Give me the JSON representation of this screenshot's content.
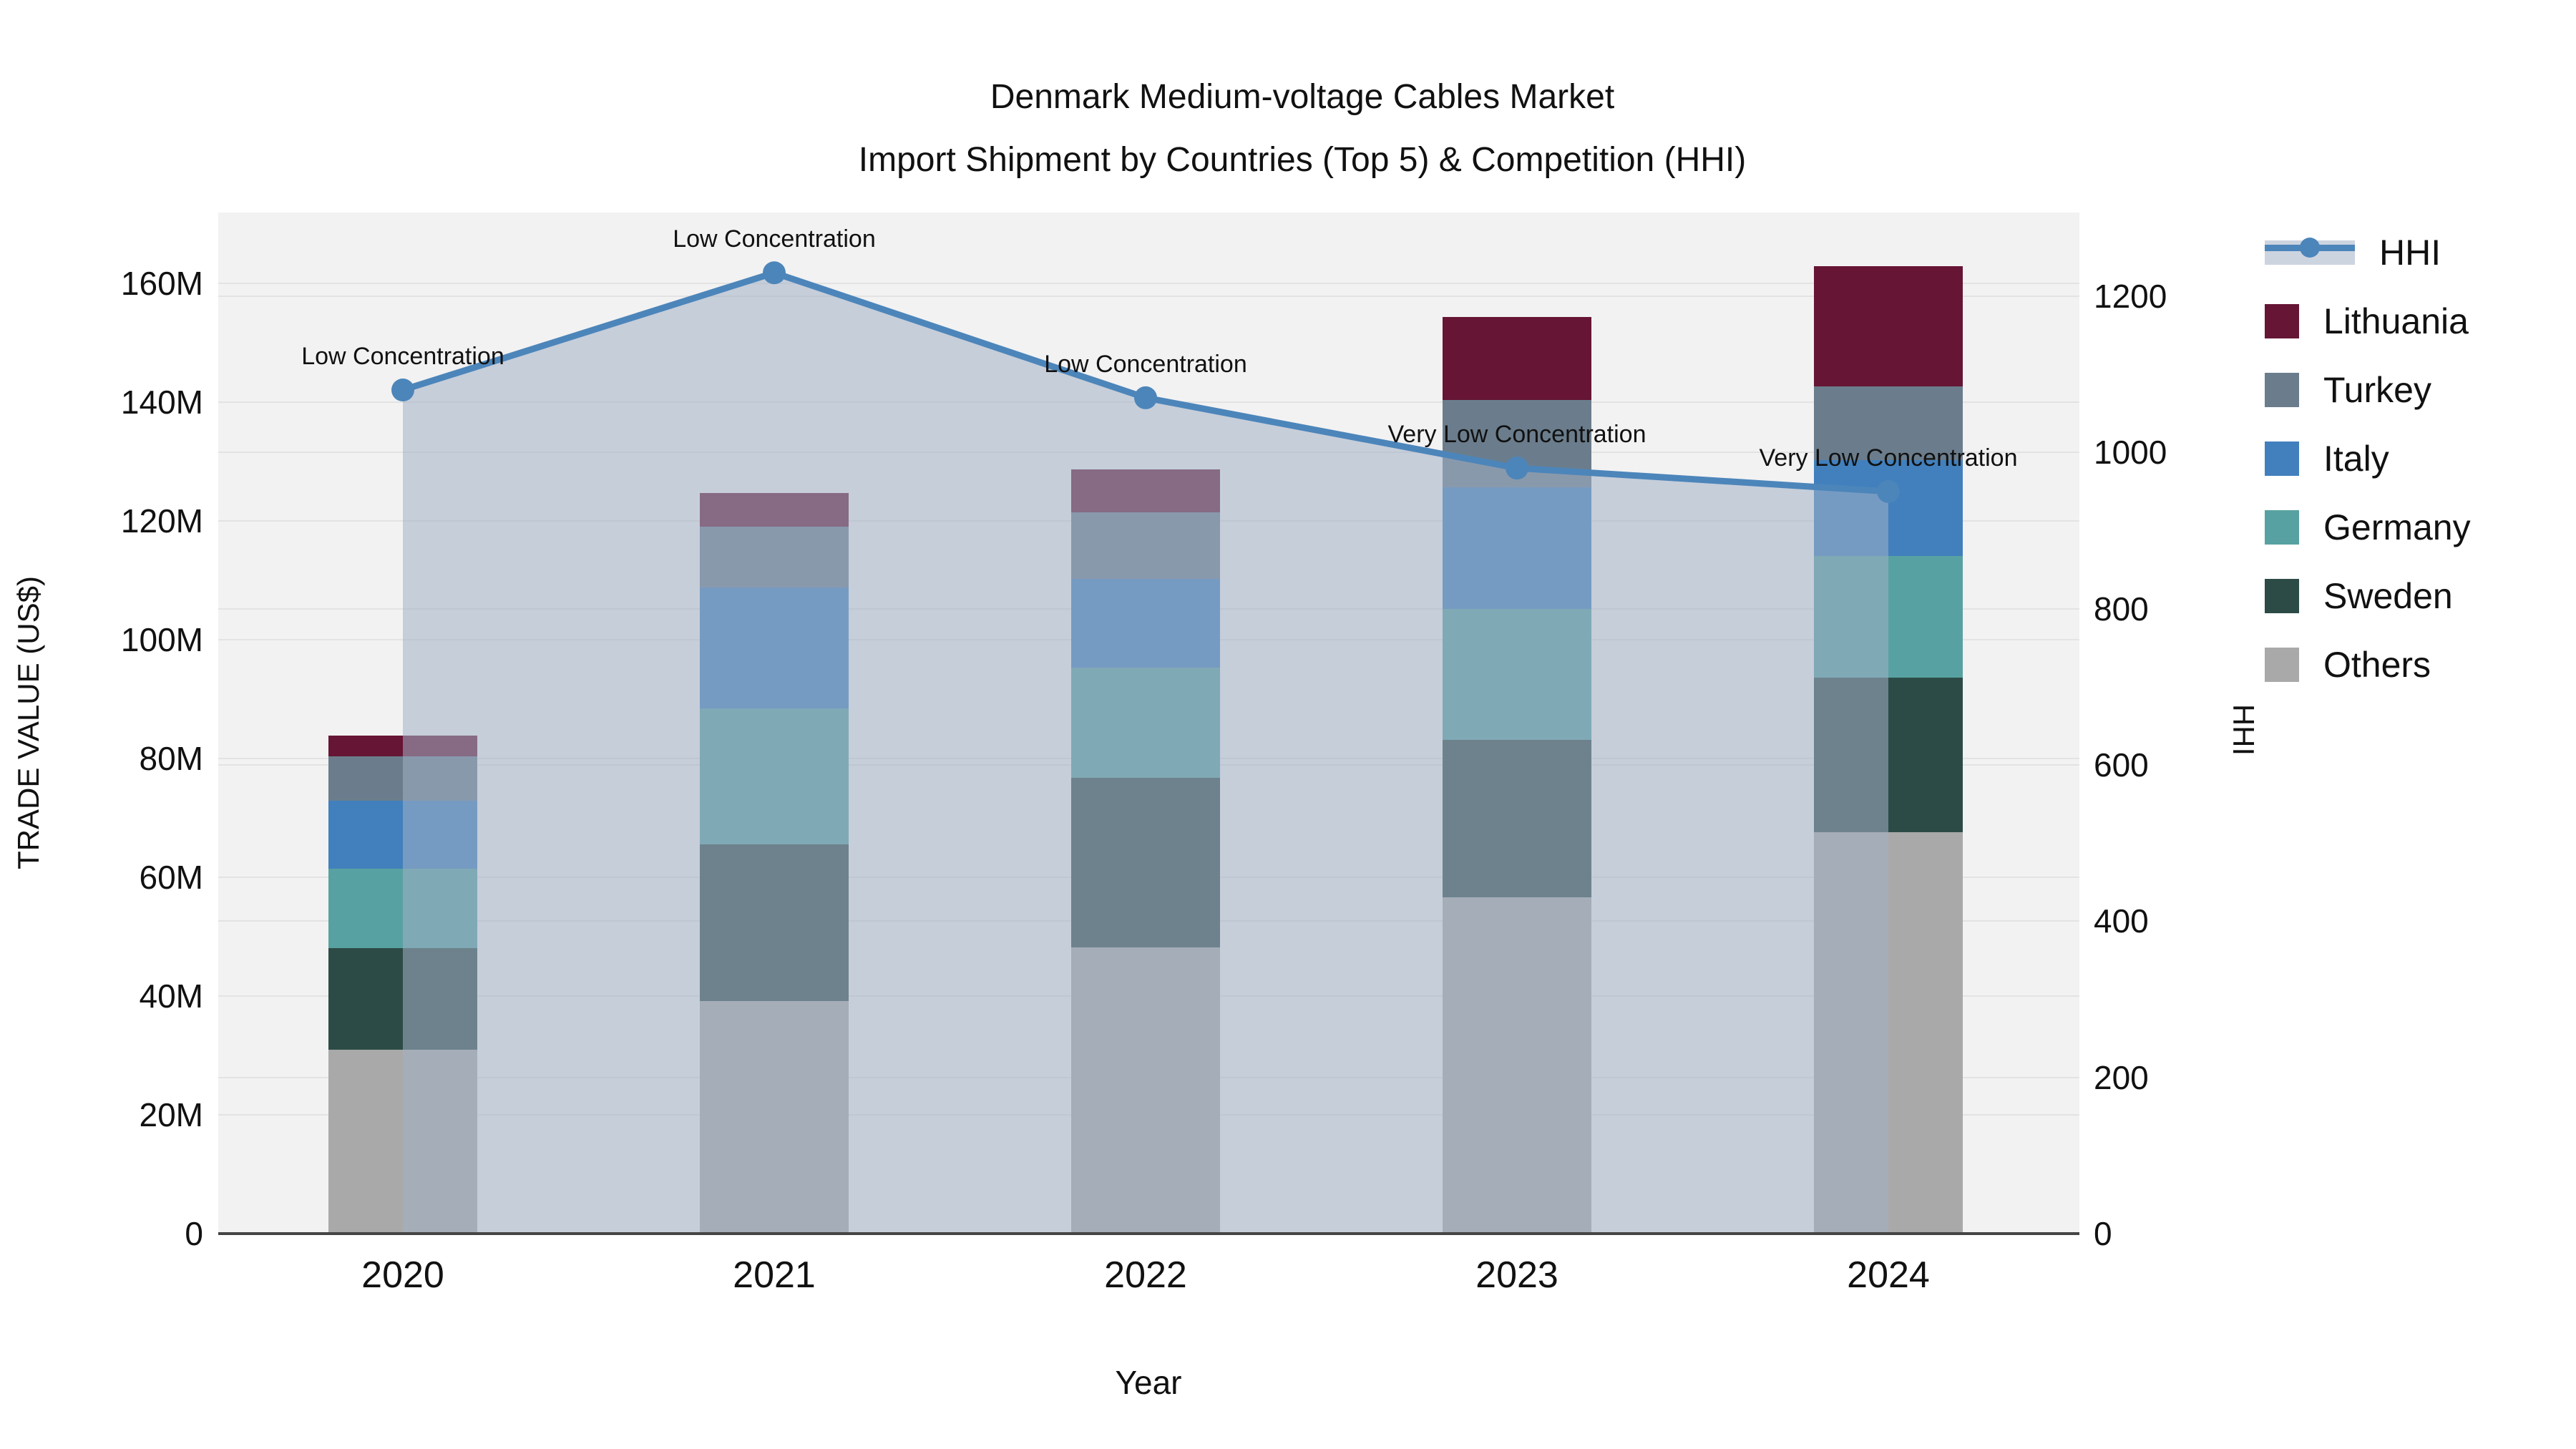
{
  "title": {
    "line1": "Denmark Medium-voltage Cables Market",
    "line2": "Import Shipment by Countries (Top 5) & Competition (HHI)"
  },
  "axes": {
    "x": {
      "title": "Year"
    },
    "y_left": {
      "title": "TRADE VALUE (US$)",
      "tick_labels": [
        "0",
        "20M",
        "40M",
        "60M",
        "80M",
        "100M",
        "120M",
        "140M",
        "160M"
      ],
      "tick_values": [
        0,
        20,
        40,
        60,
        80,
        100,
        120,
        140,
        160
      ]
    },
    "y_right": {
      "title": "HHI",
      "tick_labels": [
        "0",
        "200",
        "400",
        "600",
        "800",
        "1000",
        "1200"
      ],
      "tick_values": [
        0,
        200,
        400,
        600,
        800,
        1000,
        1200
      ]
    }
  },
  "colors": {
    "plot_bg": "#f2f2f2",
    "gridline": "#e3e3e3",
    "axis_line": "#454545",
    "hhi_line": "#4c85ba",
    "hhi_fill": "rgba(163,177,199,0.55)",
    "lithuania": "#661534",
    "turkey": "#6b7d8c",
    "italy": "#4180bd",
    "germany": "#58a1a2",
    "sweden": "#2d4b46",
    "others": "#a9a9a9"
  },
  "legend": {
    "items": [
      {
        "key": "hhi",
        "label": "HHI",
        "type": "line"
      },
      {
        "key": "lithuania",
        "label": "Lithuania",
        "type": "box"
      },
      {
        "key": "turkey",
        "label": "Turkey",
        "type": "box"
      },
      {
        "key": "italy",
        "label": "Italy",
        "type": "box"
      },
      {
        "key": "germany",
        "label": "Germany",
        "type": "box"
      },
      {
        "key": "sweden",
        "label": "Sweden",
        "type": "box"
      },
      {
        "key": "others",
        "label": "Others",
        "type": "box"
      }
    ]
  },
  "chart_data": {
    "type": "stacked-bar + line combo",
    "categories": [
      "2020",
      "2021",
      "2022",
      "2023",
      "2024"
    ],
    "units_left": "Trade value, US$ millions",
    "units_right": "HHI index",
    "series": [
      {
        "name": "Others",
        "key": "others",
        "values": [
          31.0,
          39.1,
          48.2,
          56.6,
          67.6
        ]
      },
      {
        "name": "Sweden",
        "key": "sweden",
        "values": [
          17.1,
          26.4,
          28.6,
          26.5,
          26.0
        ]
      },
      {
        "name": "Germany",
        "key": "germany",
        "values": [
          13.3,
          22.9,
          18.5,
          22.1,
          20.5
        ]
      },
      {
        "name": "Italy",
        "key": "italy",
        "values": [
          11.5,
          20.4,
          14.9,
          20.5,
          16.1
        ]
      },
      {
        "name": "Turkey",
        "key": "turkey",
        "values": [
          7.5,
          10.2,
          11.2,
          14.7,
          12.5
        ]
      },
      {
        "name": "Lithuania",
        "key": "lithuania",
        "values": [
          3.5,
          5.7,
          7.3,
          13.9,
          20.2
        ]
      }
    ],
    "bar_totals": [
      83.9,
      124.7,
      128.7,
      154.3,
      162.9
    ],
    "line": {
      "name": "HHI",
      "axis": "right",
      "values": [
        1080,
        1230,
        1070,
        980,
        950
      ]
    },
    "annotations": [
      {
        "category": "2020",
        "text": "Low Concentration"
      },
      {
        "category": "2021",
        "text": "Low Concentration"
      },
      {
        "category": "2022",
        "text": "Low Concentration"
      },
      {
        "category": "2023",
        "text": "Very Low Concentration"
      },
      {
        "category": "2024",
        "text": "Very Low Concentration"
      }
    ],
    "ylim_left": [
      0,
      172
    ],
    "ylim_right": [
      0,
      1307
    ],
    "grid": "horizontal, both axes",
    "legend_position": "right"
  }
}
